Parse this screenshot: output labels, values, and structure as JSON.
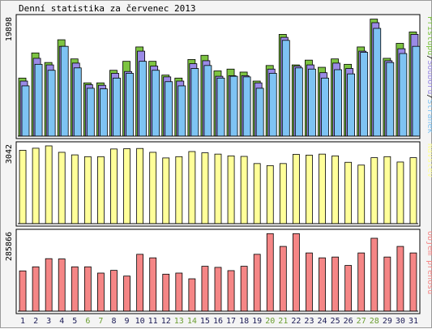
{
  "title": "Denní statistika za červenec 2013",
  "colors": {
    "panel_bg": "#ffffff",
    "pristupy": "#7dc442",
    "soubory": "#9a8ae6",
    "stranky": "#7ec3f3",
    "navstevy": "#ffff99",
    "prenos": "#f58686",
    "weekend_label": "#6a9e2f",
    "day_label": "#1a1a55"
  },
  "chart_data": [
    {
      "type": "bar",
      "name": "hits_files_pages",
      "max_label": "19898",
      "legend": [
        {
          "key": "stranky",
          "label": "Stránek"
        },
        {
          "key": "soubory",
          "label": "Souborů"
        },
        {
          "key": "pristupy",
          "label": "Přístupů"
        }
      ],
      "separator": "/",
      "ylim": [
        0,
        19898
      ],
      "series": [
        {
          "name": "Přístupů",
          "values": [
            9700,
            13900,
            12300,
            16100,
            12900,
            8900,
            8900,
            11000,
            12500,
            14900,
            12500,
            10200,
            9700,
            12800,
            13500,
            10900,
            11200,
            10700,
            9200,
            11800,
            17000,
            11900,
            12700,
            11500,
            12900,
            12000,
            14900,
            19550,
            13000,
            15500,
            17400
          ]
        },
        {
          "name": "Souborů",
          "values": [
            9200,
            13000,
            11900,
            15000,
            12200,
            8600,
            8500,
            10500,
            10800,
            14200,
            11700,
            9900,
            9200,
            12100,
            12600,
            10000,
            10100,
            10100,
            8900,
            11200,
            16500,
            11700,
            11900,
            10600,
            12200,
            11300,
            14200,
            18950,
            12600,
            14600,
            17000
          ]
        },
        {
          "name": "Stránek",
          "values": [
            8400,
            12000,
            11000,
            15000,
            11400,
            8000,
            7900,
            9700,
            10500,
            12500,
            11000,
            9100,
            8400,
            11300,
            11800,
            9700,
            10000,
            9900,
            8000,
            10500,
            16000,
            11400,
            11200,
            9700,
            11100,
            10400,
            14000,
            18000,
            12300,
            13800,
            15000
          ]
        }
      ],
      "day_labels": [
        "1",
        "2",
        "3",
        "4",
        "5",
        "6",
        "7",
        "8",
        "9",
        "10",
        "11",
        "12",
        "13",
        "14",
        "15",
        "16",
        "17",
        "18",
        "19",
        "20",
        "21",
        "22",
        "23",
        "24",
        "25",
        "26",
        "27",
        "28",
        "29",
        "30",
        "31"
      ],
      "weekend_days": [
        6,
        7,
        13,
        14,
        20,
        21,
        27,
        28
      ]
    },
    {
      "type": "bar",
      "name": "visits",
      "max_label": "3042",
      "legend": [
        {
          "key": "navstevy",
          "label": "Návštěv"
        }
      ],
      "ylim": [
        0,
        3042
      ],
      "series": [
        {
          "name": "Návštěv",
          "values": [
            2870,
            2950,
            3042,
            2790,
            2690,
            2620,
            2620,
            2920,
            2930,
            2940,
            2790,
            2570,
            2620,
            2820,
            2770,
            2720,
            2650,
            2630,
            2350,
            2270,
            2350,
            2710,
            2680,
            2720,
            2650,
            2400,
            2290,
            2580,
            2620,
            2410,
            2580
          ]
        }
      ]
    },
    {
      "type": "bar",
      "name": "transfer",
      "max_label": "285866",
      "legend": [
        {
          "key": "prenos",
          "label": "Objem přenosu"
        }
      ],
      "ylim": [
        0,
        285866
      ],
      "series": [
        {
          "name": "Objem přenosu",
          "values": [
            148000,
            163000,
            193000,
            192000,
            163000,
            163000,
            140000,
            150000,
            129000,
            209000,
            196000,
            136000,
            140000,
            119000,
            165000,
            161000,
            149000,
            165000,
            209000,
            285000,
            238000,
            285000,
            214000,
            196000,
            199000,
            168000,
            214000,
            268000,
            199000,
            238000,
            214000
          ]
        }
      ]
    }
  ]
}
